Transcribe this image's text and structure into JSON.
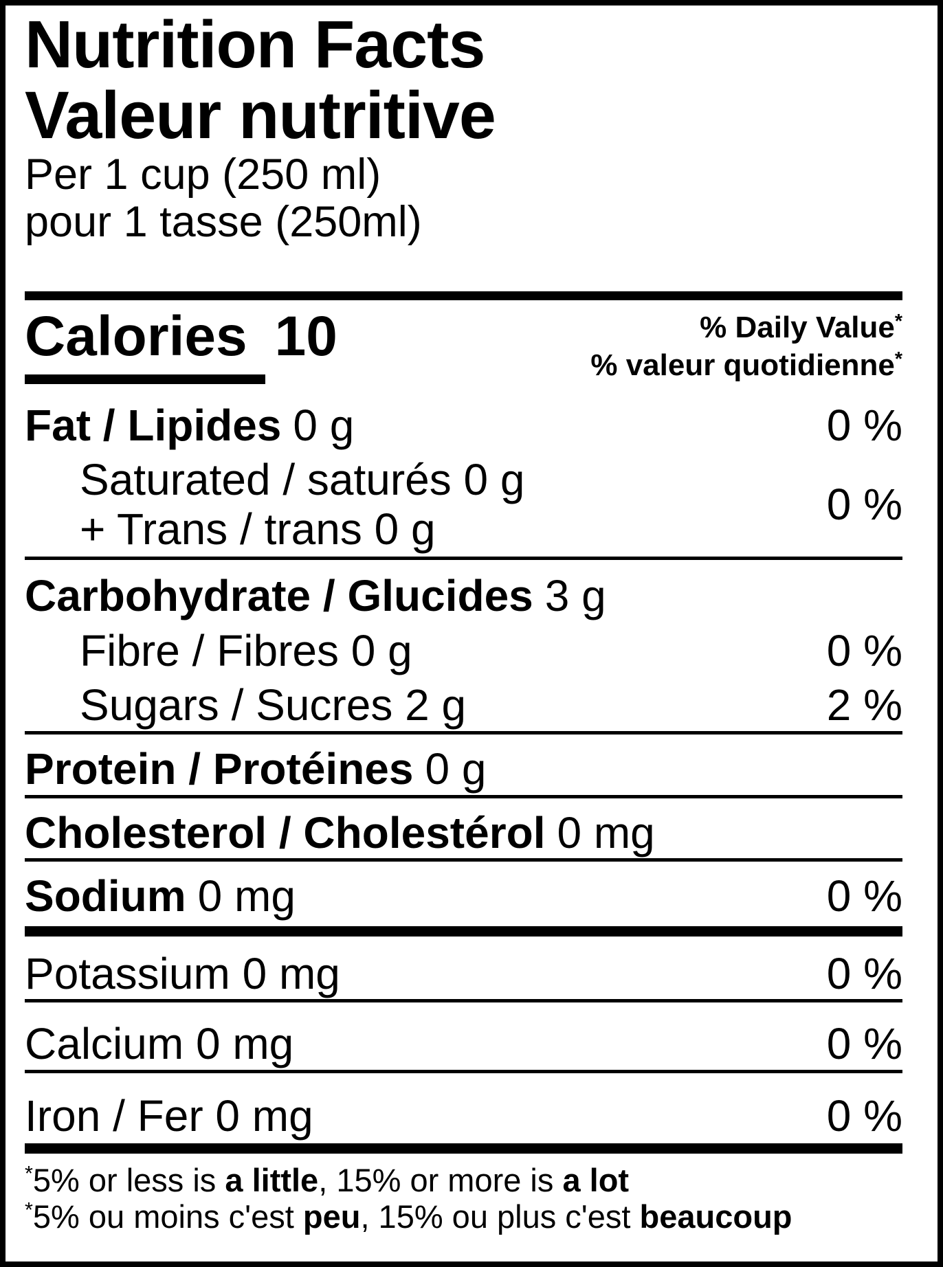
{
  "colors": {
    "text": "#000000",
    "background": "#ffffff"
  },
  "header": {
    "title_en": "Nutrition Facts",
    "title_fr": "Valeur nutritive",
    "serving_en": "Per 1 cup (250 ml)",
    "serving_fr": "pour 1 tasse (250ml)"
  },
  "calories": {
    "label": "Calories",
    "value": "10"
  },
  "dv_header": {
    "en": "% Daily Value",
    "fr": "% valeur quotidienne",
    "asterisk": "*"
  },
  "rows": {
    "fat": {
      "name": "Fat / Lipides",
      "amount": "0 g",
      "dv": "0 %"
    },
    "saturated_trans": {
      "line1": "Saturated / saturés 0 g",
      "line2": "+ Trans / trans 0 g",
      "dv": "0 %"
    },
    "carbohydrate": {
      "name": "Carbohydrate / Glucides",
      "amount": "3 g"
    },
    "fibre": {
      "label": "Fibre / Fibres 0 g",
      "dv": "0 %"
    },
    "sugars": {
      "label": "Sugars / Sucres 2 g",
      "dv": "2 %"
    },
    "protein": {
      "name": "Protein / Protéines",
      "amount": "0 g"
    },
    "cholesterol": {
      "name": "Cholesterol / Cholestérol",
      "amount": "0 mg"
    },
    "sodium": {
      "name": "Sodium",
      "amount": "0 mg",
      "dv": "0 %"
    },
    "potassium": {
      "label": "Potassium 0 mg",
      "dv": "0 %"
    },
    "calcium": {
      "label": "Calcium 0 mg",
      "dv": "0 %"
    },
    "iron": {
      "label": "Iron / Fer 0 mg",
      "dv": "0 %"
    }
  },
  "footnotes": {
    "asterisk": "*",
    "en": {
      "pre": "5% or less is ",
      "bold1": "a little",
      "mid": ", 15% or more is ",
      "bold2": "a lot"
    },
    "fr": {
      "pre": "5% ou moins c'est ",
      "bold1": "peu",
      "mid": ", 15% ou plus c'est ",
      "bold2": "beaucoup"
    }
  }
}
